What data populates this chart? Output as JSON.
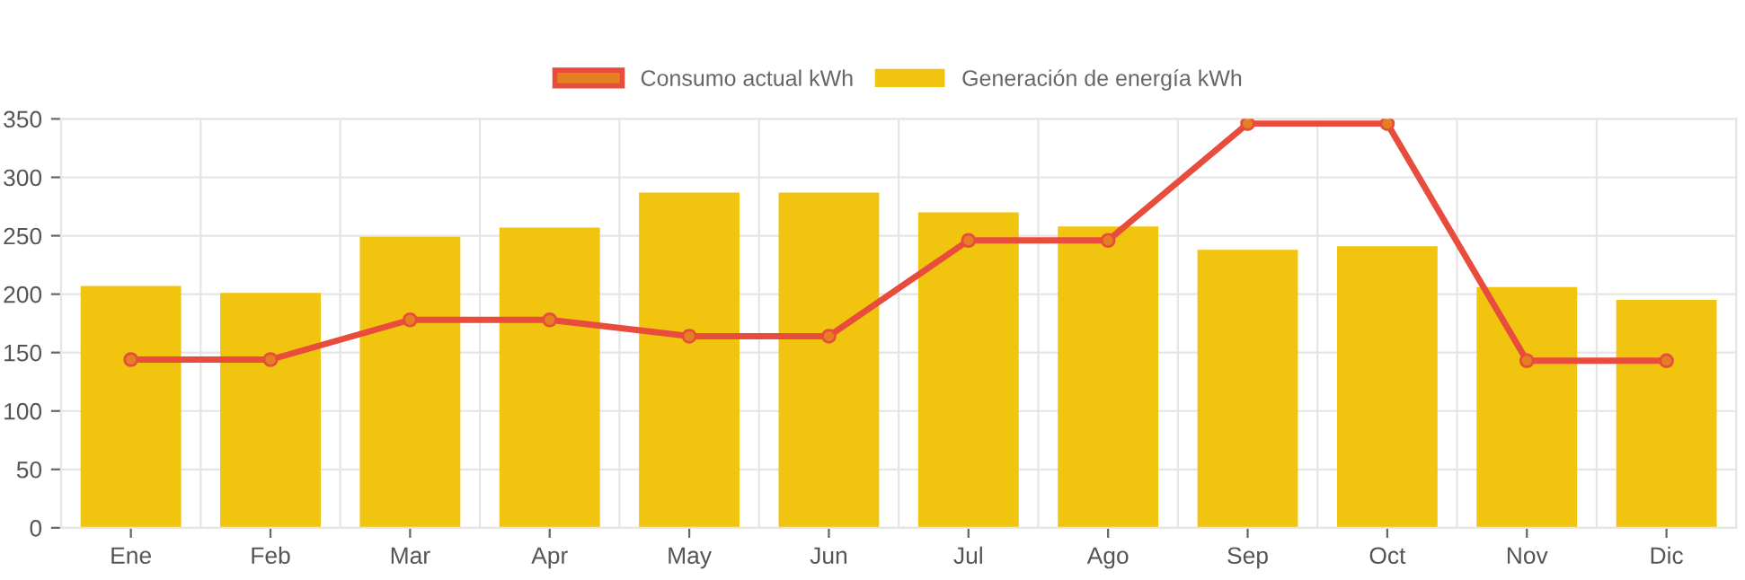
{
  "chart_data": {
    "type": "bar",
    "categories": [
      "Ene",
      "Feb",
      "Mar",
      "Apr",
      "May",
      "Jun",
      "Jul",
      "Ago",
      "Sep",
      "Oct",
      "Nov",
      "Dic"
    ],
    "series": [
      {
        "name": "Consumo actual kWh",
        "type": "line",
        "color": "#e74c3c",
        "values": [
          144,
          144,
          178,
          178,
          164,
          164,
          246,
          246,
          346,
          346,
          143,
          143
        ]
      },
      {
        "name": "Generación de energía kWh",
        "color": "#f1c40f",
        "values": [
          207,
          201,
          249,
          257,
          287,
          287,
          270,
          258,
          238,
          241,
          206,
          195
        ]
      }
    ],
    "ylim": [
      0,
      350
    ],
    "yticks": [
      0,
      50,
      100,
      150,
      200,
      250,
      300,
      350
    ],
    "grid": true,
    "legend": "top",
    "marker": "circle",
    "line_style": "solid"
  }
}
